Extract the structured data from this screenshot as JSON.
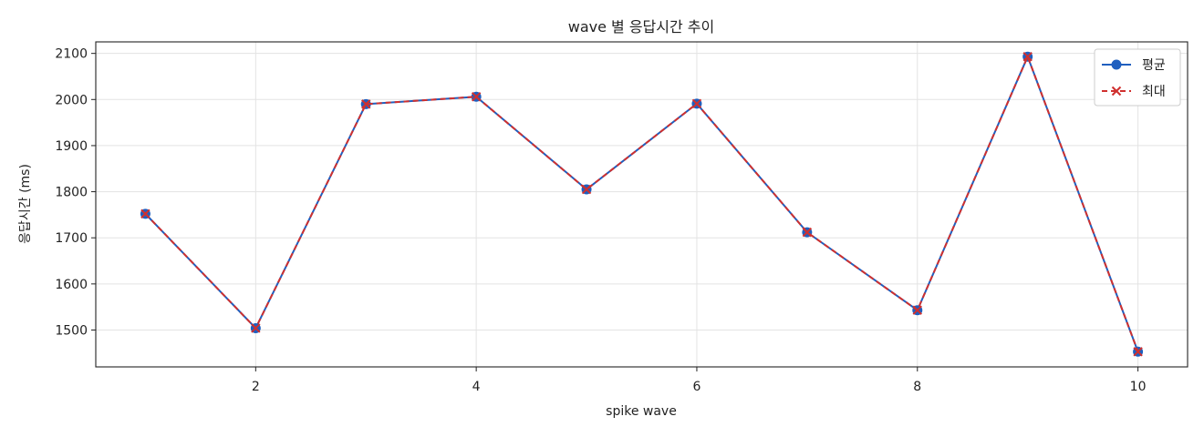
{
  "chart_data": {
    "type": "line",
    "title": "wave 별 응답시간 추이",
    "xlabel": "spike wave",
    "ylabel": "응답시간 (ms)",
    "x": [
      1,
      2,
      3,
      4,
      5,
      6,
      7,
      8,
      9,
      10
    ],
    "x_ticks": [
      2,
      4,
      6,
      8,
      10
    ],
    "y_ticks": [
      1500,
      1600,
      1700,
      1800,
      1900,
      2000,
      2100
    ],
    "xlim": [
      0.55,
      10.45
    ],
    "ylim": [
      1420,
      2125
    ],
    "grid": true,
    "legend_position": "top-right",
    "series": [
      {
        "name": "평균",
        "values": [
          1752,
          1504,
          1990,
          2006,
          1805,
          1991,
          1712,
          1543,
          2093,
          1453
        ],
        "color": "#1f5fbf",
        "marker": "circle",
        "line_style": "solid"
      },
      {
        "name": "최대",
        "values": [
          1752,
          1504,
          1990,
          2006,
          1805,
          1991,
          1712,
          1543,
          2093,
          1453
        ],
        "color": "#d0302f",
        "marker": "x",
        "line_style": "dashed"
      }
    ]
  }
}
